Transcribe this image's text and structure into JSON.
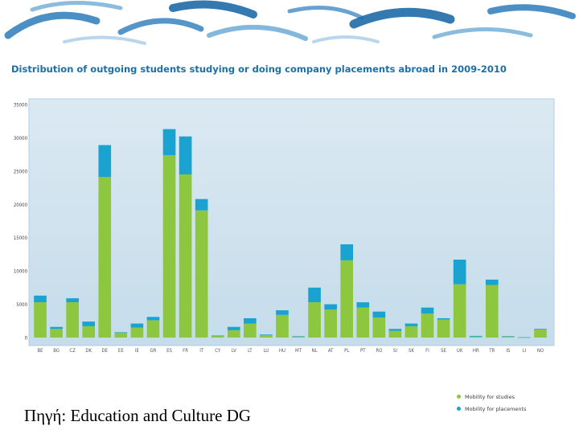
{
  "page": {
    "title": "Distribution of outgoing students studying or doing company placements abroad in 2009-2010",
    "source_note": "Πηγή: Education and Culture DG"
  },
  "colors": {
    "studies": "#8dc63f",
    "placements": "#1aa3d1",
    "plot_background": "#c5dcea",
    "title": "#1c6fa8",
    "banner": "#2b7bba"
  },
  "chart_data": {
    "type": "bar",
    "stacked": true,
    "title": "Distribution of outgoing students studying or doing company placements abroad in 2009-2010",
    "xlabel": "",
    "ylabel": "",
    "ylim": [
      0,
      35000
    ],
    "yticks": [
      0,
      5000,
      10000,
      15000,
      20000,
      25000,
      30000,
      35000
    ],
    "grid": false,
    "legend_position": "bottom-right",
    "categories": [
      "BE",
      "BG",
      "CZ",
      "DK",
      "DE",
      "EE",
      "IE",
      "GR",
      "ES",
      "FR",
      "IT",
      "CY",
      "LV",
      "LT",
      "LU",
      "HU",
      "MT",
      "NL",
      "AT",
      "PL",
      "PT",
      "RO",
      "SI",
      "SK",
      "FI",
      "SE",
      "UK",
      "HR",
      "TR",
      "IS",
      "LI",
      "NO"
    ],
    "series": [
      {
        "name": "Mobility for studies",
        "color": "#8dc63f",
        "values": [
          5300,
          1300,
          5300,
          1700,
          24100,
          700,
          1500,
          2600,
          27400,
          24500,
          19100,
          250,
          1100,
          2100,
          350,
          3400,
          150,
          5300,
          4200,
          11600,
          4500,
          3000,
          1000,
          1700,
          3600,
          2700,
          8000,
          150,
          7900,
          150,
          30,
          1200
        ]
      },
      {
        "name": "Mobility for placements",
        "color": "#1aa3d1",
        "values": [
          1000,
          300,
          600,
          700,
          4800,
          100,
          600,
          500,
          3900,
          5700,
          1700,
          50,
          500,
          800,
          100,
          700,
          50,
          2200,
          800,
          2400,
          800,
          900,
          300,
          400,
          900,
          200,
          3700,
          100,
          800,
          70,
          20,
          100
        ]
      }
    ]
  }
}
